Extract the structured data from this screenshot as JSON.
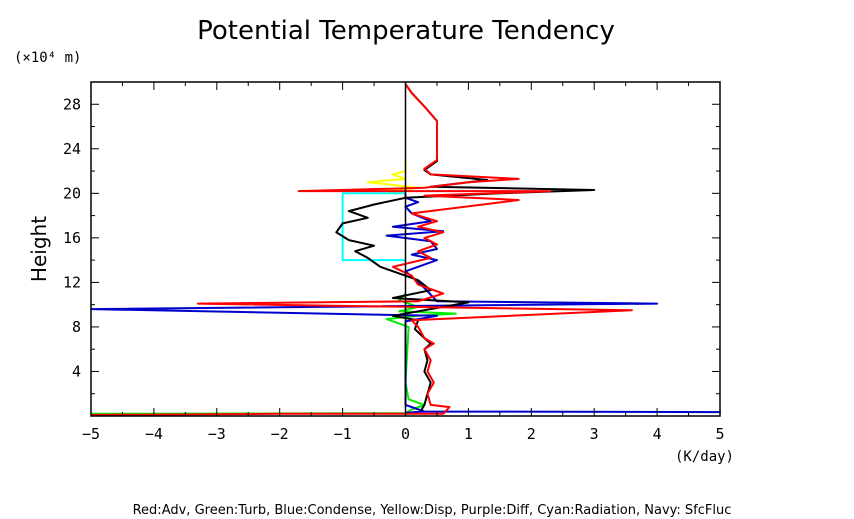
{
  "chart_data": {
    "type": "line",
    "title": "Potential Temperature Tendency",
    "ylabel": "Height",
    "y_unit": "(×10⁴ m)",
    "x_unit": "(K/day)",
    "legend_note": "Red:Adv, Green:Turb, Blue:Condense, Yellow:Disp, Purple:Diff, Cyan:Radiation, Navy: SfcFluc",
    "xlim": [
      -5,
      5
    ],
    "ylim": [
      0,
      30
    ],
    "x_ticks": [
      -5,
      -4,
      -3,
      -2,
      -1,
      0,
      1,
      2,
      3,
      4,
      5
    ],
    "x_tick_labels": [
      "−5",
      "−4",
      "−3",
      "−2",
      "−1",
      "0",
      "1",
      "2",
      "3",
      "4",
      "5"
    ],
    "y_ticks": [
      4,
      8,
      12,
      16,
      20,
      24,
      28
    ],
    "y_tick_labels": [
      "4",
      "8",
      "12",
      "16",
      "20",
      "24",
      "28"
    ],
    "series": [
      {
        "color": "#00ee00",
        "points": [
          [
            -5,
            0.2
          ],
          [
            0,
            0.25
          ],
          [
            0.1,
            0.6
          ],
          [
            0.3,
            1.0
          ],
          [
            0.05,
            1.5
          ],
          [
            0,
            3
          ],
          [
            0.05,
            8
          ],
          [
            -0.3,
            8.7
          ],
          [
            0.2,
            9.0
          ],
          [
            0.8,
            9.2
          ],
          [
            -0.1,
            9.4
          ],
          [
            0.2,
            9.8
          ],
          [
            -0.1,
            10.4
          ],
          [
            0,
            11
          ]
        ]
      },
      {
        "color": "#ffff00",
        "points": [
          [
            0,
            20
          ],
          [
            -0.3,
            20.2
          ],
          [
            0.2,
            20.5
          ],
          [
            -0.6,
            21.0
          ],
          [
            0,
            21.3
          ],
          [
            -0.2,
            21.7
          ],
          [
            0,
            22.0
          ],
          [
            0,
            23
          ]
        ]
      },
      {
        "color": "#00ffff",
        "points": [
          [
            0,
            14
          ],
          [
            -1,
            14
          ],
          [
            -1,
            20
          ],
          [
            0,
            20
          ]
        ]
      },
      {
        "color": "#0000cc",
        "points": [
          [
            0,
            0.3
          ],
          [
            0.3,
            0.4
          ],
          [
            5,
            0.35
          ],
          [
            0.3,
            0.4
          ],
          [
            0,
            1
          ],
          [
            0,
            8.5
          ],
          [
            0.5,
            9.0
          ],
          [
            -5,
            9.6
          ],
          [
            4,
            10.1
          ],
          [
            0.5,
            10.3
          ],
          [
            0.3,
            11.5
          ],
          [
            0.1,
            12.5
          ],
          [
            0,
            13
          ],
          [
            0.5,
            14
          ],
          [
            0.1,
            14.5
          ],
          [
            0.5,
            15
          ],
          [
            0.4,
            15.7
          ],
          [
            -0.3,
            16.2
          ],
          [
            0.6,
            16.6
          ],
          [
            -0.2,
            17.0
          ],
          [
            0.4,
            17.5
          ],
          [
            0.1,
            18.2
          ],
          [
            0,
            18.8
          ],
          [
            0.2,
            19.2
          ],
          [
            0,
            19.6
          ],
          [
            0,
            20
          ]
        ]
      },
      {
        "color": "#000000",
        "points": [
          [
            0.25,
            0.5
          ],
          [
            0.3,
            1.0
          ],
          [
            0.35,
            2.0
          ],
          [
            0.4,
            3.0
          ],
          [
            0.3,
            4.0
          ],
          [
            0.35,
            5.0
          ],
          [
            0.3,
            6.0
          ],
          [
            0.4,
            6.5
          ],
          [
            0.3,
            7.0
          ],
          [
            0.15,
            7.8
          ],
          [
            0.2,
            8.6
          ],
          [
            -0.2,
            9.0
          ],
          [
            1,
            10.2
          ],
          [
            -0.2,
            10.6
          ],
          [
            0.4,
            11.3
          ],
          [
            0.2,
            12.2
          ],
          [
            0,
            12.6
          ],
          [
            -0.4,
            13.4
          ],
          [
            -0.6,
            14.2
          ],
          [
            -0.8,
            14.8
          ],
          [
            -0.5,
            15.3
          ],
          [
            -0.9,
            15.8
          ],
          [
            -1.1,
            16.5
          ],
          [
            -1.0,
            17.3
          ],
          [
            -0.6,
            17.8
          ],
          [
            -0.9,
            18.4
          ],
          [
            -0.5,
            19.0
          ],
          [
            0,
            19.6
          ],
          [
            1.5,
            20.0
          ],
          [
            3,
            20.3
          ],
          [
            0.4,
            20.6
          ],
          [
            1.3,
            21.2
          ],
          [
            0.4,
            21.7
          ],
          [
            0.3,
            22.1
          ],
          [
            0.5,
            22.9
          ],
          [
            0.5,
            25
          ],
          [
            0.5,
            26.5
          ],
          [
            0.3,
            27.8
          ],
          [
            0.1,
            29
          ],
          [
            0,
            29.8
          ]
        ]
      },
      {
        "color": "#ff0000",
        "points": [
          [
            -5,
            0.1
          ],
          [
            -2,
            0.2
          ],
          [
            0.6,
            0.2
          ],
          [
            0.7,
            0.8
          ],
          [
            0.4,
            1.0
          ],
          [
            0.35,
            2.0
          ],
          [
            0.45,
            3.0
          ],
          [
            0.35,
            4.0
          ],
          [
            0.4,
            5.0
          ],
          [
            0.3,
            6.0
          ],
          [
            0.45,
            6.5
          ],
          [
            0.3,
            7.0
          ],
          [
            0.2,
            8.0
          ],
          [
            0.1,
            8.6
          ],
          [
            3.6,
            9.5
          ],
          [
            0.1,
            9.8
          ],
          [
            -3.3,
            10.1
          ],
          [
            0.2,
            10.3
          ],
          [
            0.6,
            11.0
          ],
          [
            0.2,
            11.8
          ],
          [
            0.1,
            12.6
          ],
          [
            -0.2,
            13.4
          ],
          [
            0.4,
            14.2
          ],
          [
            0.2,
            14.8
          ],
          [
            0.5,
            15.4
          ],
          [
            0.3,
            16.0
          ],
          [
            0.6,
            16.5
          ],
          [
            0.2,
            17.0
          ],
          [
            0.5,
            17.5
          ],
          [
            0.1,
            18.2
          ],
          [
            1.8,
            19.4
          ],
          [
            0.3,
            19.8
          ],
          [
            2.3,
            20.2
          ],
          [
            -1.7,
            20.2
          ],
          [
            0.3,
            20.5
          ],
          [
            1.0,
            21.0
          ],
          [
            1.8,
            21.3
          ],
          [
            0.4,
            21.7
          ],
          [
            0.3,
            22.2
          ],
          [
            0.5,
            23.0
          ],
          [
            0.5,
            24.5
          ],
          [
            0.5,
            26.5
          ],
          [
            0.3,
            27.8
          ],
          [
            0.1,
            29
          ],
          [
            0,
            29.8
          ]
        ]
      }
    ]
  }
}
